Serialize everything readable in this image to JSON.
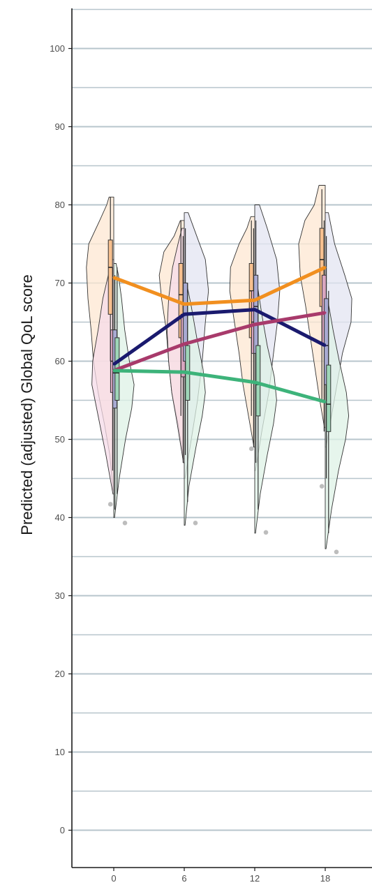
{
  "chart_data": {
    "type": "line",
    "title": "",
    "xlabel": "",
    "ylabel": "Predicted (adjusted) Global QoL score",
    "x": [
      0,
      6,
      12,
      18
    ],
    "x_ticks": [
      "0",
      "6",
      "12",
      "18"
    ],
    "y_ticks": [
      "0",
      "10",
      "20",
      "30",
      "40",
      "50",
      "60",
      "70",
      "80",
      "90",
      "100"
    ],
    "ylim": [
      -5,
      105
    ],
    "xlim": [
      -4,
      21.5
    ],
    "grid": "horizontal",
    "legend": "none",
    "series": [
      {
        "color": "#f18f1f",
        "values": [
          70.7,
          67.3,
          67.8,
          72.0
        ]
      },
      {
        "color": "#1a1a6e",
        "values": [
          59.6,
          66.0,
          66.6,
          62.0
        ]
      },
      {
        "color": "#a83a6b",
        "values": [
          58.8,
          62.2,
          64.7,
          66.2
        ]
      },
      {
        "color": "#3db37a",
        "values": [
          58.8,
          58.6,
          57.3,
          54.8
        ]
      }
    ],
    "violins": [
      {
        "group": "orange",
        "color": "#f5a05a",
        "fill": "#fde7d2",
        "side": "left",
        "profiles": [
          {
            "x": 0,
            "ymin": 43.5,
            "ymax": 81,
            "widths": [
              [
                43.5,
                0.1
              ],
              [
                48,
                0.5
              ],
              [
                52,
                1.2
              ],
              [
                56,
                2.0
              ],
              [
                60,
                2.6
              ],
              [
                64,
                2.9
              ],
              [
                68,
                3.3
              ],
              [
                72,
                3.5
              ],
              [
                75,
                3.2
              ],
              [
                78,
                1.8
              ],
              [
                80,
                0.9
              ],
              [
                81,
                0.6
              ]
            ]
          },
          {
            "x": 6,
            "ymin": 47.5,
            "ymax": 78,
            "widths": [
              [
                47.5,
                0.1
              ],
              [
                52,
                0.8
              ],
              [
                56,
                1.6
              ],
              [
                60,
                2.0
              ],
              [
                64,
                2.3
              ],
              [
                68,
                2.9
              ],
              [
                71,
                3.2
              ],
              [
                74,
                2.6
              ],
              [
                76,
                1.3
              ],
              [
                78,
                0.5
              ]
            ]
          },
          {
            "x": 12,
            "ymin": 49,
            "ymax": 78.5,
            "widths": [
              [
                49,
                0.1
              ],
              [
                53,
                0.8
              ],
              [
                57,
                1.5
              ],
              [
                61,
                2.0
              ],
              [
                65,
                2.6
              ],
              [
                69,
                3.2
              ],
              [
                72,
                3.1
              ],
              [
                75,
                2.0
              ],
              [
                77,
                1.0
              ],
              [
                78.5,
                0.5
              ]
            ]
          },
          {
            "x": 18,
            "ymin": 51.5,
            "ymax": 82.5,
            "widths": [
              [
                51.5,
                0.1
              ],
              [
                55,
                0.7
              ],
              [
                59,
                1.3
              ],
              [
                63,
                1.9
              ],
              [
                67,
                2.5
              ],
              [
                71,
                3.2
              ],
              [
                75,
                3.4
              ],
              [
                78,
                2.6
              ],
              [
                80,
                1.4
              ],
              [
                82.5,
                0.8
              ]
            ]
          }
        ]
      },
      {
        "group": "pink",
        "color": "#d58ab0",
        "fill": "#f6dbe8",
        "side": "left",
        "profiles": [
          {
            "x": 0,
            "ymin": 43,
            "ymax": 73,
            "widths": [
              [
                43,
                0.1
              ],
              [
                48,
                1.0
              ],
              [
                53,
                2.0
              ],
              [
                57,
                2.8
              ],
              [
                60,
                2.7
              ],
              [
                64,
                2.0
              ],
              [
                68,
                1.4
              ],
              [
                71,
                0.7
              ],
              [
                73,
                0.3
              ]
            ]
          },
          {
            "x": 6,
            "ymin": 47,
            "ymax": 77,
            "widths": [
              [
                47,
                0.1
              ],
              [
                52,
                0.9
              ],
              [
                56,
                1.6
              ],
              [
                60,
                2.0
              ],
              [
                64,
                2.2
              ],
              [
                68,
                2.0
              ],
              [
                72,
                1.5
              ],
              [
                75,
                0.8
              ],
              [
                77,
                0.3
              ]
            ]
          }
        ]
      },
      {
        "group": "navy",
        "color": "#8b8fc2",
        "fill": "#e3e4f2",
        "side": "right",
        "profiles": [
          {
            "x": 6,
            "ymin": 45,
            "ymax": 79,
            "widths": [
              [
                45,
                0.1
              ],
              [
                50,
                0.9
              ],
              [
                55,
                1.7
              ],
              [
                60,
                2.3
              ],
              [
                65,
                2.7
              ],
              [
                69,
                3.1
              ],
              [
                73,
                2.7
              ],
              [
                76,
                1.6
              ],
              [
                79,
                0.5
              ]
            ]
          },
          {
            "x": 12,
            "ymin": 46,
            "ymax": 80,
            "widths": [
              [
                46,
                0.1
              ],
              [
                51,
                0.9
              ],
              [
                56,
                1.8
              ],
              [
                61,
                2.4
              ],
              [
                65,
                2.9
              ],
              [
                69,
                3.2
              ],
              [
                73,
                2.8
              ],
              [
                77,
                1.6
              ],
              [
                80,
                0.6
              ]
            ]
          },
          {
            "x": 18,
            "ymin": 49,
            "ymax": 79,
            "widths": [
              [
                49,
                0.1
              ],
              [
                53,
                0.8
              ],
              [
                57,
                1.5
              ],
              [
                61,
                2.2
              ],
              [
                65,
                3.3
              ],
              [
                68,
                3.4
              ],
              [
                71,
                2.5
              ],
              [
                75,
                1.2
              ],
              [
                79,
                0.4
              ]
            ]
          }
        ]
      },
      {
        "group": "green",
        "color": "#7cc79f",
        "fill": "#ddf2e6",
        "side": "right",
        "profiles": [
          {
            "x": 0,
            "ymin": 40,
            "ymax": 72.5,
            "widths": [
              [
                40,
                0.1
              ],
              [
                45,
                0.7
              ],
              [
                50,
                1.5
              ],
              [
                54,
                2.3
              ],
              [
                57,
                2.6
              ],
              [
                60,
                2.0
              ],
              [
                64,
                1.4
              ],
              [
                68,
                1.0
              ],
              [
                71,
                0.6
              ],
              [
                72.5,
                0.3
              ]
            ]
          },
          {
            "x": 6,
            "ymin": 39,
            "ymax": 70,
            "widths": [
              [
                39,
                0.1
              ],
              [
                44,
                0.6
              ],
              [
                49,
                1.5
              ],
              [
                53,
                2.3
              ],
              [
                56,
                2.7
              ],
              [
                59,
                2.4
              ],
              [
                63,
                1.6
              ],
              [
                67,
                0.9
              ],
              [
                70,
                0.3
              ]
            ]
          },
          {
            "x": 12,
            "ymin": 38,
            "ymax": 70,
            "widths": [
              [
                38,
                0.1
              ],
              [
                43,
                0.7
              ],
              [
                48,
                1.6
              ],
              [
                52,
                2.4
              ],
              [
                55,
                2.8
              ],
              [
                58,
                2.5
              ],
              [
                62,
                1.6
              ],
              [
                66,
                0.9
              ],
              [
                70,
                0.3
              ]
            ]
          },
          {
            "x": 18,
            "ymin": 36,
            "ymax": 68,
            "widths": [
              [
                36,
                0.1
              ],
              [
                41,
                0.8
              ],
              [
                46,
                1.7
              ],
              [
                50,
                2.6
              ],
              [
                53,
                3.0
              ],
              [
                56,
                2.7
              ],
              [
                60,
                1.8
              ],
              [
                64,
                1.0
              ],
              [
                68,
                0.3
              ]
            ]
          }
        ]
      }
    ],
    "boxes": [
      {
        "x": 0,
        "offset": -0.6,
        "q1": 66,
        "median": 72,
        "q3": 75.5,
        "low": 60,
        "high": 81,
        "fill": "#f7c08f"
      },
      {
        "x": 0,
        "offset": -0.2,
        "q1": 56,
        "median": 60,
        "q3": 64,
        "low": 46,
        "high": 72,
        "fill": "#d8a6c0"
      },
      {
        "x": 0,
        "offset": 0.2,
        "q1": 54,
        "median": 58.5,
        "q3": 64,
        "low": 41,
        "high": 71,
        "fill": "#a8aad2"
      },
      {
        "x": 0,
        "offset": 0.6,
        "q1": 55,
        "median": 58.5,
        "q3": 63,
        "low": 43,
        "high": 72,
        "fill": "#9fd6b8"
      },
      {
        "x": 6,
        "offset": -0.6,
        "q1": 63,
        "median": 68.5,
        "q3": 72.5,
        "low": 53,
        "high": 78,
        "fill": "#f7c08f"
      },
      {
        "x": 6,
        "offset": -0.2,
        "q1": 58,
        "median": 62,
        "q3": 66,
        "low": 47,
        "high": 76,
        "fill": "#d8a6c0"
      },
      {
        "x": 6,
        "offset": 0.2,
        "q1": 60,
        "median": 66,
        "q3": 70,
        "low": 48,
        "high": 77,
        "fill": "#a8aad2"
      },
      {
        "x": 6,
        "offset": 0.6,
        "q1": 55,
        "median": 58.5,
        "q3": 62,
        "low": 42,
        "high": 70,
        "fill": "#9fd6b8"
      },
      {
        "x": 12,
        "offset": -0.6,
        "q1": 63,
        "median": 69,
        "q3": 72.5,
        "low": 53,
        "high": 78,
        "fill": "#f7c08f"
      },
      {
        "x": 12,
        "offset": -0.2,
        "q1": 61,
        "median": 65,
        "q3": 69,
        "low": 49,
        "high": 77,
        "fill": "#d8a6c0"
      },
      {
        "x": 12,
        "offset": 0.2,
        "q1": 61,
        "median": 67,
        "q3": 71,
        "low": 47,
        "high": 78,
        "fill": "#a8aad2"
      },
      {
        "x": 12,
        "offset": 0.6,
        "q1": 53,
        "median": 57,
        "q3": 62,
        "low": 41,
        "high": 69,
        "fill": "#9fd6b8"
      },
      {
        "x": 18,
        "offset": -0.6,
        "q1": 67,
        "median": 73,
        "q3": 77,
        "low": 55,
        "high": 82,
        "fill": "#f7c08f"
      },
      {
        "x": 18,
        "offset": -0.2,
        "q1": 62,
        "median": 66,
        "q3": 71,
        "low": 51,
        "high": 78,
        "fill": "#d8a6c0"
      },
      {
        "x": 18,
        "offset": 0.2,
        "q1": 57,
        "median": 62,
        "q3": 68,
        "low": 45,
        "high": 76,
        "fill": "#a8aad2"
      },
      {
        "x": 18,
        "offset": 0.6,
        "q1": 51,
        "median": 54.5,
        "q3": 59.5,
        "low": 38,
        "high": 69,
        "fill": "#9fd6b8"
      }
    ],
    "points": [
      {
        "x": 0,
        "offset": -0.3,
        "y": 41.7,
        "color": "#bdbdbd"
      },
      {
        "x": 0,
        "offset": 1.0,
        "y": 39.3,
        "color": "#bdbdbd"
      },
      {
        "x": 6,
        "offset": 1.0,
        "y": 39.3,
        "color": "#bdbdbd"
      },
      {
        "x": 12,
        "offset": -0.3,
        "y": 48.8,
        "color": "#bdbdbd"
      },
      {
        "x": 12,
        "offset": 1.0,
        "y": 38.1,
        "color": "#bdbdbd"
      },
      {
        "x": 18,
        "offset": -0.3,
        "y": 44.0,
        "color": "#bdbdbd"
      },
      {
        "x": 18,
        "offset": 1.0,
        "y": 35.6,
        "color": "#bdbdbd"
      }
    ],
    "colors": {
      "grid": "#b7c5cc",
      "axis": "#1a1a1a"
    }
  }
}
